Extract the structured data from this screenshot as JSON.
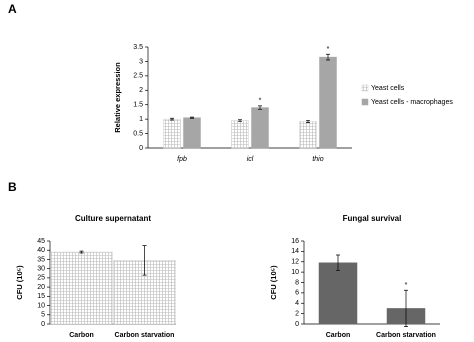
{
  "chart_data": [
    {
      "type": "bar",
      "panel": "A",
      "ylabel": "Relative expression",
      "categories": [
        "fpb",
        "icl",
        "thio"
      ],
      "series": [
        {
          "name": "Yeast cells",
          "color": "#f4f4f4",
          "hatch": true,
          "values": [
            1,
            0.95,
            0.92
          ],
          "errors": [
            0.03,
            0.03,
            0.04
          ],
          "significance": [
            null,
            null,
            null
          ]
        },
        {
          "name": "Yeast cells - macrophages",
          "color": "#a6a6a6",
          "hatch": false,
          "values": [
            1.05,
            1.4,
            3.15
          ],
          "errors": [
            0.02,
            0.06,
            0.1
          ],
          "significance": [
            null,
            "*",
            "*"
          ]
        }
      ],
      "ylim": [
        0,
        3.5
      ],
      "yticks": [
        0,
        0.5,
        1,
        1.5,
        2,
        2.5,
        3,
        3.5
      ]
    },
    {
      "type": "bar",
      "panel": "B",
      "title": "Culture supernatant",
      "ylabel": "CFU (10⁵)",
      "categories": [
        "Carbon",
        "Carbon starvation"
      ],
      "values": [
        39,
        34.5
      ],
      "errors": [
        0.5,
        8
      ],
      "significance": [
        null,
        null
      ],
      "color": "#ededed",
      "hatch": true,
      "ylim": [
        0,
        45
      ],
      "yticks": [
        0,
        5,
        10,
        15,
        20,
        25,
        30,
        35,
        40,
        45
      ]
    },
    {
      "type": "bar",
      "title": "Fungal survival",
      "ylabel": "CFU (10⁵)",
      "categories": [
        "Carbon",
        "Carbon starvation"
      ],
      "values": [
        11.8,
        3
      ],
      "errors": [
        1.5,
        3.5
      ],
      "significance": [
        null,
        "*"
      ],
      "color": "#666666",
      "hatch": false,
      "ylim": [
        0,
        16
      ],
      "yticks": [
        0,
        2,
        4,
        6,
        8,
        10,
        12,
        14,
        16
      ]
    }
  ]
}
